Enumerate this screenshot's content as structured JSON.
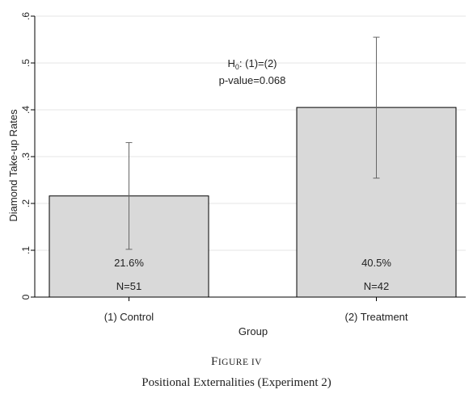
{
  "chart_data": {
    "type": "bar",
    "categories": [
      "(1) Control",
      "(2) Treatment"
    ],
    "values": [
      0.216,
      0.405
    ],
    "ci_low": [
      0.102,
      0.254
    ],
    "ci_high": [
      0.33,
      0.555
    ],
    "value_labels": [
      "21.6%",
      "40.5%"
    ],
    "n_labels": [
      "N=51",
      "N=42"
    ],
    "xlabel": "Group",
    "ylabel": "Diamond Take-up Rates",
    "yticks": [
      0,
      0.1,
      0.2,
      0.3,
      0.4,
      0.5,
      0.6
    ],
    "ytick_labels": [
      "0",
      ".1",
      ".2",
      ".3",
      ".4",
      ".5",
      ".6"
    ],
    "ylim": [
      0,
      0.6
    ],
    "grid": true,
    "bar_fill": "#d9d9d9",
    "bar_stroke": "#000000",
    "annotation": {
      "line1_prefix": "H",
      "line1_sub": "0",
      "line1_rest": ": (1)=(2)",
      "line2": "p-value=0.068"
    }
  },
  "caption": {
    "figure_label_first": "F",
    "figure_label_rest": "IGURE IV",
    "title": "Positional Externalities (Experiment 2)"
  }
}
